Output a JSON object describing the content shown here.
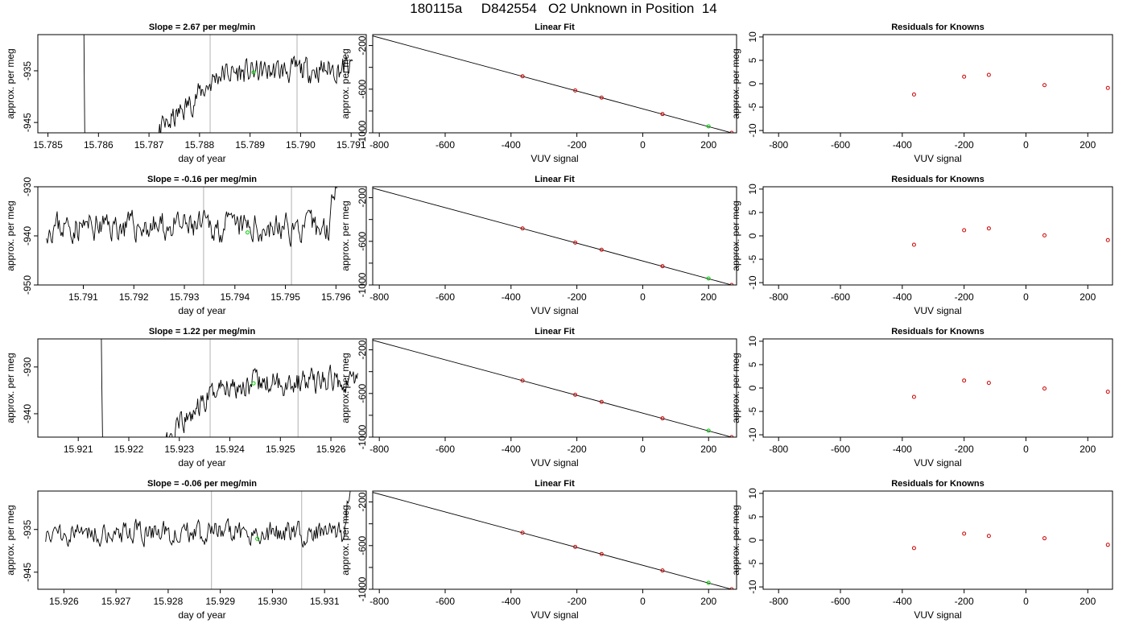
{
  "page_title": "180115a     D842554   O2 Unknown in Position  14",
  "colors": {
    "trace": "#000000",
    "marker_green": "#00cc00",
    "points_red": "#cc0000",
    "vline_gray": "#bebebe"
  },
  "chart_data": [
    {
      "type": "line",
      "panel": "time",
      "title": "Slope =  2.67  per meg/min",
      "xlabel": "day of year",
      "ylabel": "approx. per meg",
      "xlim": [
        15.7848,
        15.7913
      ],
      "ylim": [
        -947,
        -928
      ],
      "xticks": [
        15.785,
        15.786,
        15.787,
        15.788,
        15.789,
        15.79,
        15.791
      ],
      "xtick_labels": [
        "15.785",
        "15.786",
        "15.787",
        "15.788",
        "15.789",
        "15.790",
        "15.791"
      ],
      "yticks": [
        -945,
        -935
      ],
      "ytick_labels": [
        "-945",
        "-935"
      ],
      "vlines": [
        15.78821,
        15.78993
      ],
      "marker": {
        "x": 15.78907,
        "y": -935.3
      },
      "trace_profile": {
        "x_start": 15.7857,
        "x_end": 15.79103,
        "drop_from": -910,
        "low": -953,
        "ramp_start": 15.7866,
        "ramp_end": 15.7884,
        "plateau": -935.5,
        "end_level": -934.5,
        "noise": 1.5,
        "seed": 11
      }
    },
    {
      "type": "line",
      "panel": "time",
      "title": "Slope =  -0.16  per meg/min",
      "xlabel": "day of year",
      "ylabel": "approx. per meg",
      "xlim": [
        15.7901,
        15.7966
      ],
      "ylim": [
        -950,
        -930
      ],
      "xticks": [
        15.791,
        15.792,
        15.793,
        15.794,
        15.795,
        15.796
      ],
      "xtick_labels": [
        "15.791",
        "15.792",
        "15.793",
        "15.794",
        "15.795",
        "15.796"
      ],
      "yticks": [
        -950,
        -940,
        -930
      ],
      "ytick_labels": [
        "-950",
        "-940",
        "-930"
      ],
      "vlines": [
        15.79338,
        15.79512
      ],
      "marker": {
        "x": 15.79425,
        "y": -939.3
      },
      "trace_profile": {
        "x_start": 15.79027,
        "x_end": 15.79605,
        "drop_from": null,
        "low": null,
        "ramp_start": null,
        "ramp_end": null,
        "plateau": -938,
        "end_level": -938.5,
        "noise": 1.8,
        "rise_end": -925,
        "seed": 23
      }
    },
    {
      "type": "line",
      "panel": "time",
      "title": "Slope =  1.22  per meg/min",
      "xlabel": "day of year",
      "ylabel": "approx. per meg",
      "xlim": [
        15.9202,
        15.9267
      ],
      "ylim": [
        -945,
        -924
      ],
      "xticks": [
        15.921,
        15.922,
        15.923,
        15.924,
        15.925,
        15.926
      ],
      "xtick_labels": [
        "15.921",
        "15.922",
        "15.923",
        "15.924",
        "15.925",
        "15.926"
      ],
      "yticks": [
        -940,
        -930
      ],
      "ytick_labels": [
        "-940",
        "-930"
      ],
      "vlines": [
        15.92361,
        15.92535
      ],
      "marker": {
        "x": 15.92447,
        "y": -933.5
      },
      "trace_profile": {
        "x_start": 15.92145,
        "x_end": 15.92653,
        "drop_from": -915,
        "low": -950,
        "ramp_start": 15.9224,
        "ramp_end": 15.9238,
        "plateau": -934,
        "end_level": -932.5,
        "noise": 1.6,
        "seed": 37
      }
    },
    {
      "type": "line",
      "panel": "time",
      "title": "Slope =  -0.06  per meg/min",
      "xlabel": "day of year",
      "ylabel": "approx. per meg",
      "xlim": [
        15.9255,
        15.9318
      ],
      "ylim": [
        -949,
        -926
      ],
      "xticks": [
        15.926,
        15.927,
        15.928,
        15.929,
        15.93,
        15.931
      ],
      "xtick_labels": [
        "15.926",
        "15.927",
        "15.928",
        "15.929",
        "15.930",
        "15.931"
      ],
      "yticks": [
        -945,
        -935
      ],
      "ytick_labels": [
        "-945",
        "-935"
      ],
      "vlines": [
        15.92883,
        15.93056
      ],
      "marker": {
        "x": 15.92971,
        "y": -937.2
      },
      "trace_profile": {
        "x_start": 15.92565,
        "x_end": 15.93155,
        "drop_from": null,
        "low": null,
        "ramp_start": null,
        "ramp_end": null,
        "plateau": -935.5,
        "end_level": -936,
        "noise": 1.7,
        "rise_end": -920,
        "seed": 51
      }
    },
    {
      "type": "scatter",
      "panel": "fit",
      "title": "Linear Fit",
      "xlabel": "VUV signal",
      "ylabel": "approx. per meg",
      "xlim": [
        -820,
        285
      ],
      "ylim": [
        -1000,
        -100
      ],
      "line": {
        "x0": -830,
        "y0": -104,
        "x1": 270,
        "y1": -1000
      },
      "xticks": [
        -800,
        -600,
        -400,
        -200,
        0,
        200
      ],
      "xtick_labels": [
        "-800",
        "-600",
        "-400",
        "-200",
        "0",
        "200"
      ],
      "yticks": [
        -1000,
        -800,
        -600,
        -400,
        -200
      ],
      "ytick_labels": [
        "-1000",
        "",
        "-600",
        "",
        "-200"
      ],
      "points": [
        {
          "x": -365,
          "y": -482
        },
        {
          "x": -205,
          "y": -612
        },
        {
          "x": -125,
          "y": -677
        },
        {
          "x": 60,
          "y": -828
        },
        {
          "x": 270,
          "y": -1000
        }
      ],
      "unknown": {
        "x": 200,
        "y": -941
      }
    },
    {
      "type": "scatter",
      "panel": "fit",
      "title": "Linear Fit",
      "xlabel": "VUV signal",
      "ylabel": "approx. per meg",
      "xlim": [
        -820,
        285
      ],
      "ylim": [
        -1000,
        -100
      ],
      "line": {
        "x0": -830,
        "y0": -104,
        "x1": 270,
        "y1": -1000
      },
      "xticks": [
        -800,
        -600,
        -400,
        -200,
        0,
        200
      ],
      "xtick_labels": [
        "-800",
        "-600",
        "-400",
        "-200",
        "0",
        "200"
      ],
      "yticks": [
        -1000,
        -800,
        -600,
        -400,
        -200
      ],
      "ytick_labels": [
        "-1000",
        "",
        "-600",
        "",
        "-200"
      ],
      "points": [
        {
          "x": -365,
          "y": -482
        },
        {
          "x": -205,
          "y": -612
        },
        {
          "x": -125,
          "y": -677
        },
        {
          "x": 60,
          "y": -828
        },
        {
          "x": 270,
          "y": -1000
        }
      ],
      "unknown": {
        "x": 200,
        "y": -941
      }
    },
    {
      "type": "scatter",
      "panel": "fit",
      "title": "Linear Fit",
      "xlabel": "VUV signal",
      "ylabel": "approx. per meg",
      "xlim": [
        -820,
        285
      ],
      "ylim": [
        -1000,
        -100
      ],
      "line": {
        "x0": -830,
        "y0": -104,
        "x1": 270,
        "y1": -1000
      },
      "xticks": [
        -800,
        -600,
        -400,
        -200,
        0,
        200
      ],
      "xtick_labels": [
        "-800",
        "-600",
        "-400",
        "-200",
        "0",
        "200"
      ],
      "yticks": [
        -1000,
        -800,
        -600,
        -400,
        -200
      ],
      "ytick_labels": [
        "-1000",
        "",
        "-600",
        "",
        "-200"
      ],
      "points": [
        {
          "x": -365,
          "y": -482
        },
        {
          "x": -205,
          "y": -612
        },
        {
          "x": -125,
          "y": -677
        },
        {
          "x": 60,
          "y": -828
        },
        {
          "x": 270,
          "y": -1000
        }
      ],
      "unknown": {
        "x": 200,
        "y": -941
      }
    },
    {
      "type": "scatter",
      "panel": "fit",
      "title": "Linear Fit",
      "xlabel": "VUV signal",
      "ylabel": "approx. per meg",
      "xlim": [
        -820,
        285
      ],
      "ylim": [
        -1000,
        -100
      ],
      "line": {
        "x0": -830,
        "y0": -104,
        "x1": 270,
        "y1": -1000
      },
      "xticks": [
        -800,
        -600,
        -400,
        -200,
        0,
        200
      ],
      "xtick_labels": [
        "-800",
        "-600",
        "-400",
        "-200",
        "0",
        "200"
      ],
      "yticks": [
        -1000,
        -800,
        -600,
        -400,
        -200
      ],
      "ytick_labels": [
        "-1000",
        "",
        "-600",
        "",
        "-200"
      ],
      "points": [
        {
          "x": -365,
          "y": -482
        },
        {
          "x": -205,
          "y": -612
        },
        {
          "x": -125,
          "y": -677
        },
        {
          "x": 60,
          "y": -828
        },
        {
          "x": 270,
          "y": -1000
        }
      ],
      "unknown": {
        "x": 200,
        "y": -941
      }
    },
    {
      "type": "scatter",
      "panel": "resid",
      "title": "Residuals for Knowns",
      "xlabel": "VUV signal",
      "ylabel": "approx. per meg",
      "xlim": [
        -850,
        280
      ],
      "ylim": [
        -10.5,
        10.5
      ],
      "xticks": [
        -800,
        -600,
        -400,
        -200,
        0,
        200
      ],
      "xtick_labels": [
        "-800",
        "-600",
        "-400",
        "-200",
        "0",
        "200"
      ],
      "yticks": [
        -10,
        -5,
        0,
        5,
        10
      ],
      "ytick_labels": [
        "-10",
        "-5",
        "0",
        "5",
        "10"
      ],
      "points": [
        {
          "x": -362,
          "y": -2.3
        },
        {
          "x": -200,
          "y": 1.5
        },
        {
          "x": -120,
          "y": 1.9
        },
        {
          "x": 60,
          "y": -0.3
        },
        {
          "x": 265,
          "y": -0.9
        }
      ]
    },
    {
      "type": "scatter",
      "panel": "resid",
      "title": "Residuals for Knowns",
      "xlabel": "VUV signal",
      "ylabel": "approx. per meg",
      "xlim": [
        -850,
        280
      ],
      "ylim": [
        -10.5,
        10.5
      ],
      "xticks": [
        -800,
        -600,
        -400,
        -200,
        0,
        200
      ],
      "xtick_labels": [
        "-800",
        "-600",
        "-400",
        "-200",
        "0",
        "200"
      ],
      "yticks": [
        -10,
        -5,
        0,
        5,
        10
      ],
      "ytick_labels": [
        "-10",
        "-5",
        "0",
        "5",
        "10"
      ],
      "points": [
        {
          "x": -362,
          "y": -1.9
        },
        {
          "x": -200,
          "y": 1.2
        },
        {
          "x": -120,
          "y": 1.6
        },
        {
          "x": 60,
          "y": 0.1
        },
        {
          "x": 265,
          "y": -0.9
        }
      ]
    },
    {
      "type": "scatter",
      "panel": "resid",
      "title": "Residuals for Knowns",
      "xlabel": "VUV signal",
      "ylabel": "approx. per meg",
      "xlim": [
        -850,
        280
      ],
      "ylim": [
        -10.5,
        10.5
      ],
      "xticks": [
        -800,
        -600,
        -400,
        -200,
        0,
        200
      ],
      "xtick_labels": [
        "-800",
        "-600",
        "-400",
        "-200",
        "0",
        "200"
      ],
      "yticks": [
        -10,
        -5,
        0,
        5,
        10
      ],
      "ytick_labels": [
        "-10",
        "-5",
        "0",
        "5",
        "10"
      ],
      "points": [
        {
          "x": -362,
          "y": -1.9
        },
        {
          "x": -200,
          "y": 1.6
        },
        {
          "x": -120,
          "y": 1.1
        },
        {
          "x": 60,
          "y": -0.1
        },
        {
          "x": 265,
          "y": -0.8
        }
      ]
    },
    {
      "type": "scatter",
      "panel": "resid",
      "title": "Residuals for Knowns",
      "xlabel": "VUV signal",
      "ylabel": "approx. per meg",
      "xlim": [
        -850,
        280
      ],
      "ylim": [
        -10.5,
        10.5
      ],
      "xticks": [
        -800,
        -600,
        -400,
        -200,
        0,
        200
      ],
      "xtick_labels": [
        "-800",
        "-600",
        "-400",
        "-200",
        "0",
        "200"
      ],
      "yticks": [
        -10,
        -5,
        0,
        5,
        10
      ],
      "ytick_labels": [
        "-10",
        "-5",
        "0",
        "5",
        "10"
      ],
      "points": [
        {
          "x": -362,
          "y": -1.7
        },
        {
          "x": -200,
          "y": 1.4
        },
        {
          "x": -120,
          "y": 0.9
        },
        {
          "x": 60,
          "y": 0.4
        },
        {
          "x": 265,
          "y": -1.0
        }
      ]
    }
  ]
}
